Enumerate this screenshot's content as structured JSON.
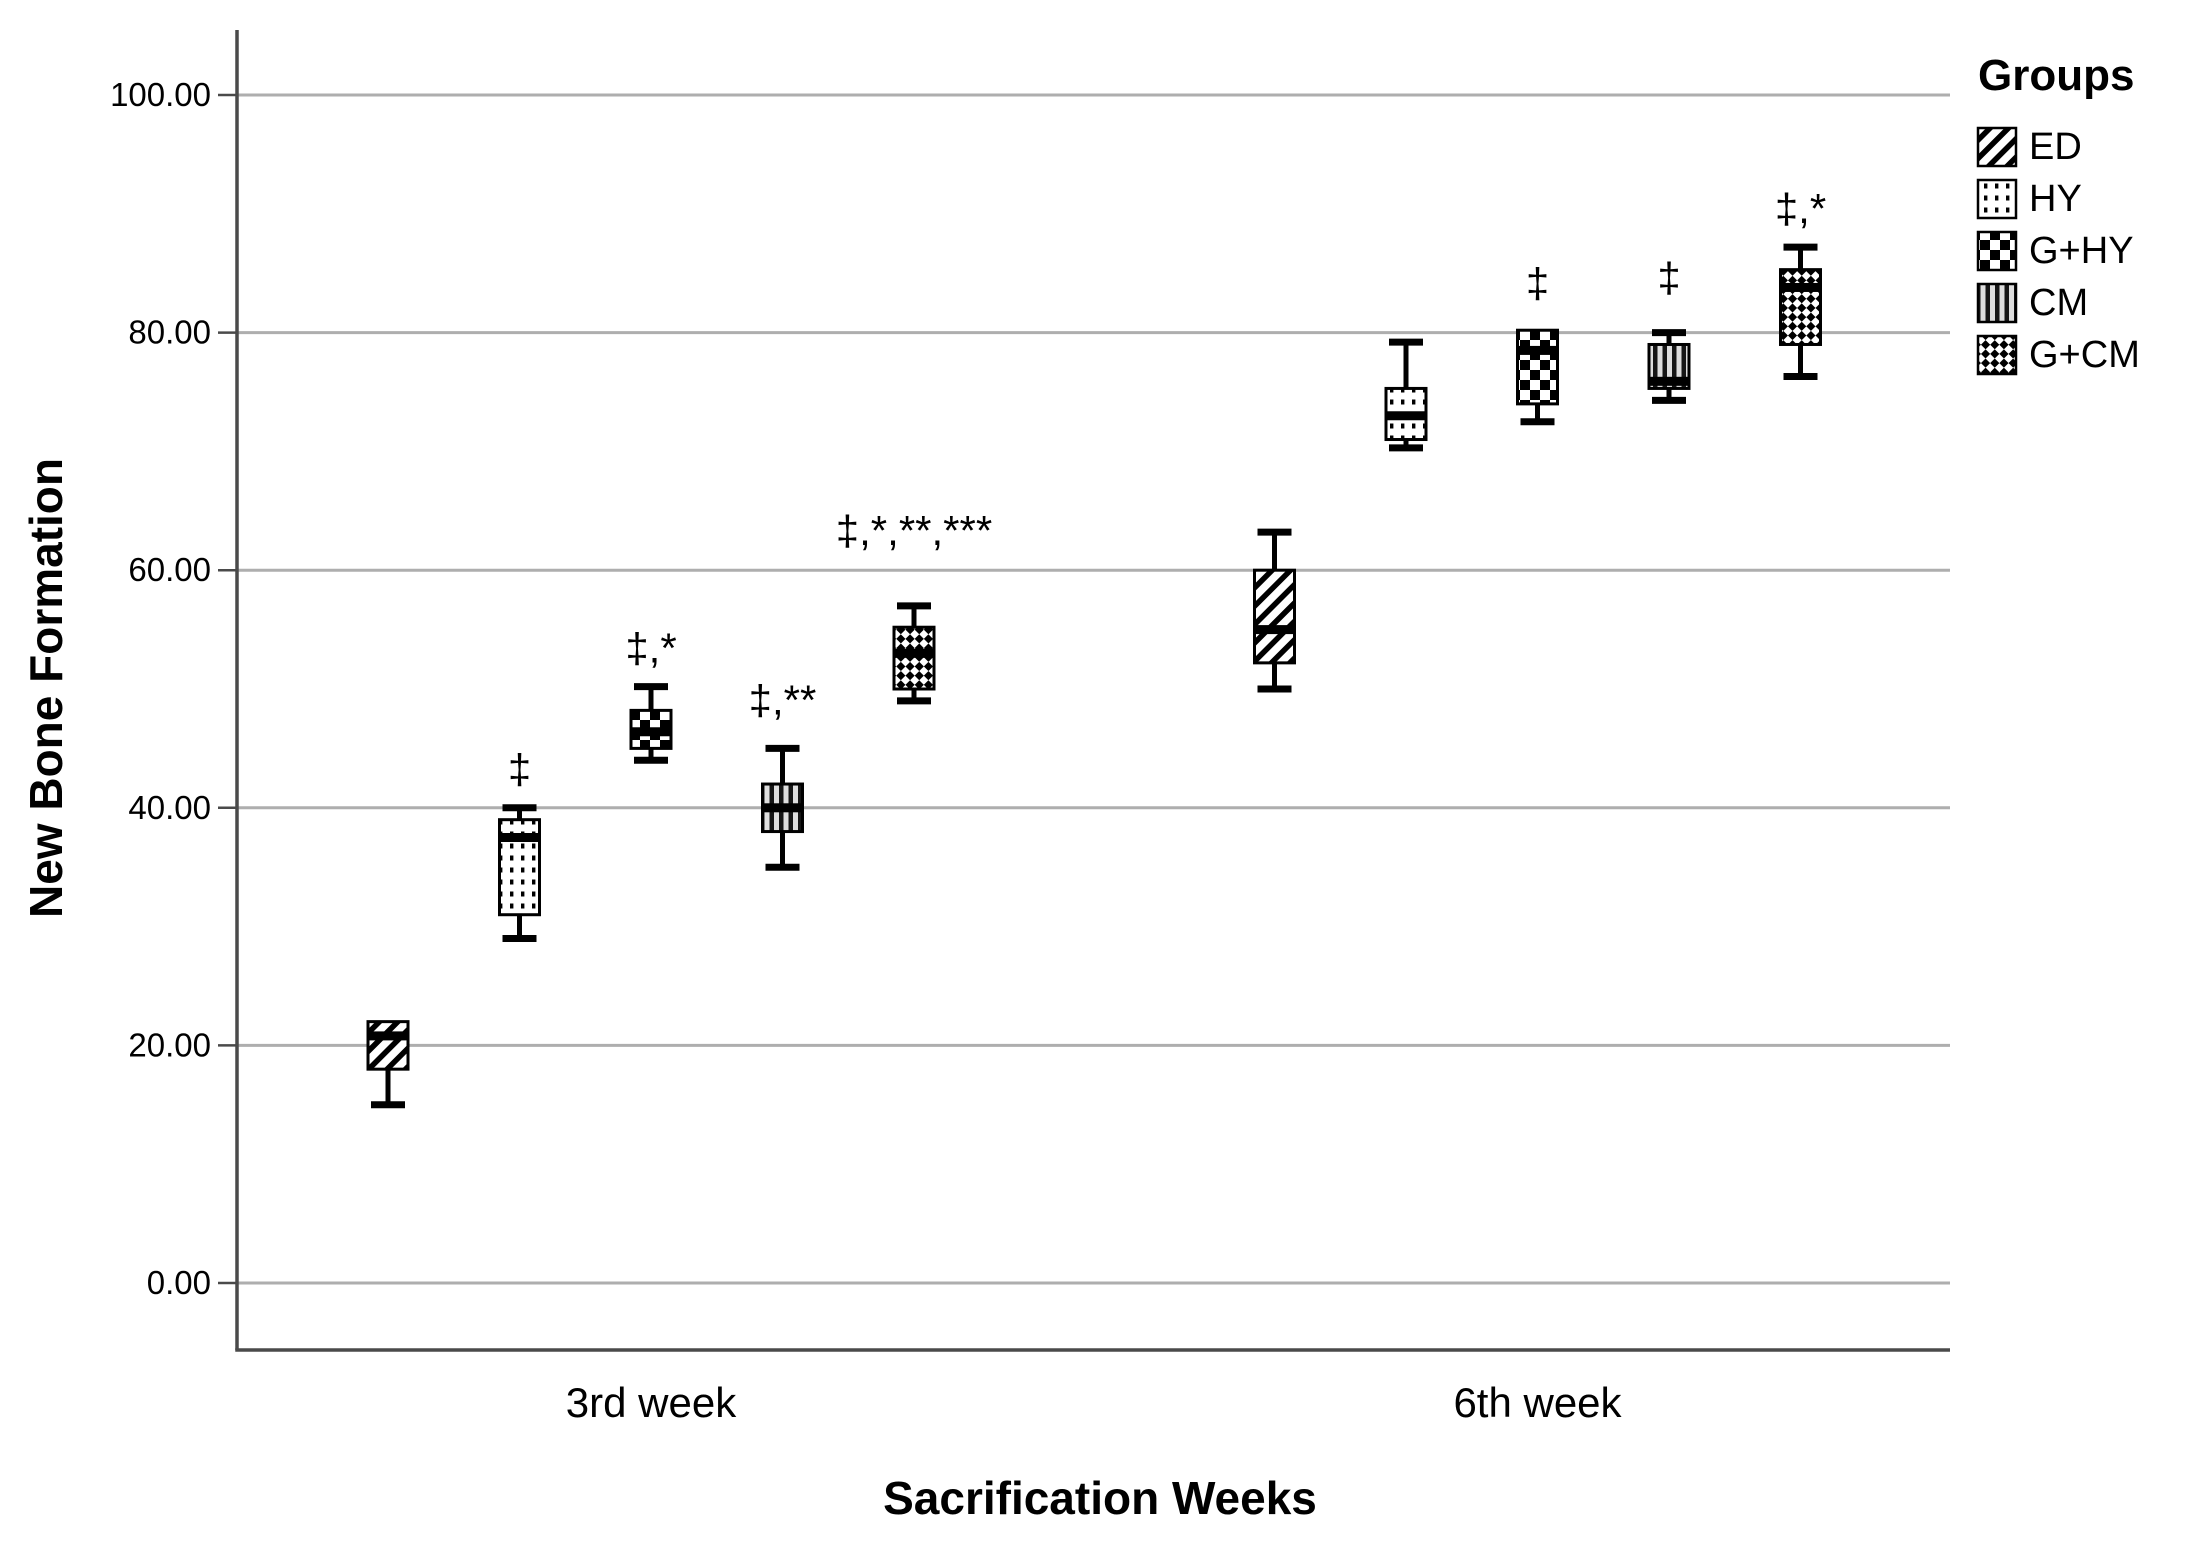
{
  "chart_data": {
    "type": "boxplot",
    "title": "",
    "xlabel": "Sacrification Weeks",
    "ylabel": "New Bone Formation",
    "legend_title": "Groups",
    "legend_position": "top-right",
    "grid": true,
    "ylim": [
      -5.6,
      105.5
    ],
    "yticks": [
      0,
      20,
      40,
      60,
      80,
      100
    ],
    "ytick_labels": [
      "0.00",
      "20.00",
      "40.00",
      "60.00",
      "80.00",
      "100.00"
    ],
    "categories": [
      "3rd week",
      "6th week"
    ],
    "groups": [
      {
        "name": "ED",
        "pattern": "diagonal-stripes"
      },
      {
        "name": "HY",
        "pattern": "dots"
      },
      {
        "name": "G+HY",
        "pattern": "checkerboard"
      },
      {
        "name": "CM",
        "pattern": "vertical-stripes"
      },
      {
        "name": "G+CM",
        "pattern": "diagonal-checker"
      }
    ],
    "boxes": [
      {
        "group": "ED",
        "category": "3rd week",
        "min": 15,
        "q1": 18,
        "median": 20.8,
        "q3": 22,
        "max": 22,
        "annotation": "",
        "annotation_value": null
      },
      {
        "group": "HY",
        "category": "3rd week",
        "min": 29,
        "q1": 31,
        "median": 37.5,
        "q3": 39,
        "max": 40,
        "annotation": "‡",
        "annotation_value": 43.3
      },
      {
        "group": "G+HY",
        "category": "3rd week",
        "min": 44,
        "q1": 45,
        "median": 46.4,
        "q3": 48.2,
        "max": 50.2,
        "annotation": "‡,*",
        "annotation_value": 53.5
      },
      {
        "group": "CM",
        "category": "3rd week",
        "min": 35,
        "q1": 38,
        "median": 40,
        "q3": 42,
        "max": 45,
        "annotation": "‡,**",
        "annotation_value": 49.1
      },
      {
        "group": "G+CM",
        "category": "3rd week",
        "min": 49,
        "q1": 50,
        "median": 53,
        "q3": 55.2,
        "max": 57,
        "annotation": "‡,*,**,***",
        "annotation_value": 63.4
      },
      {
        "group": "ED",
        "category": "6th week",
        "min": 50,
        "q1": 52.2,
        "median": 55,
        "q3": 60,
        "max": 63.2,
        "annotation": "",
        "annotation_value": null
      },
      {
        "group": "HY",
        "category": "6th week",
        "min": 70.3,
        "q1": 71,
        "median": 73,
        "q3": 75.3,
        "max": 79.2,
        "annotation": "",
        "annotation_value": null
      },
      {
        "group": "G+HY",
        "category": "6th week",
        "min": 72.5,
        "q1": 74,
        "median": 78.5,
        "q3": 80.2,
        "max": 80.2,
        "annotation": "‡",
        "annotation_value": 84.2
      },
      {
        "group": "CM",
        "category": "6th week",
        "min": 74.3,
        "q1": 75.3,
        "median": 75.9,
        "q3": 79,
        "max": 80,
        "annotation": "‡",
        "annotation_value": 84.7
      },
      {
        "group": "G+CM",
        "category": "6th week",
        "min": 76.3,
        "q1": 79,
        "median": 83.8,
        "q3": 85.3,
        "max": 87.2,
        "annotation": "‡,*",
        "annotation_value": 90.5
      }
    ],
    "colors": {
      "background": "#ffffff",
      "box_stroke": "#000000",
      "median": "#000000",
      "whisker": "#000000",
      "gridline": "#aeaeae",
      "axis_line": "#4a4a4a",
      "tick": "#4a4a4a",
      "text": "#000000"
    }
  }
}
